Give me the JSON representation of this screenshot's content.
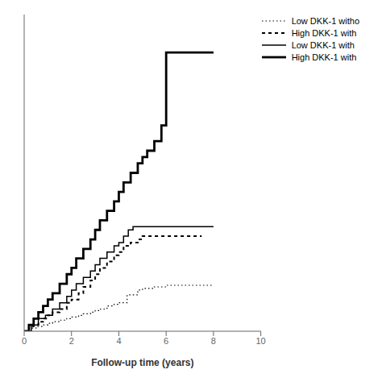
{
  "chart_data": {
    "type": "step",
    "xlabel": "Follow-up time (years)",
    "xlim": [
      0,
      10.0
    ],
    "ylim": [
      0,
      1.0
    ],
    "xticks": [
      0,
      2,
      4,
      6,
      8,
      10
    ],
    "tick_labels": "x",
    "grid": false,
    "legend": "top-right",
    "series": [
      {
        "name": "Low DKK-1 witho",
        "color": "#000000",
        "line_style": "dotted",
        "x": [
          0,
          0.3,
          0.5,
          0.8,
          1.0,
          1.2,
          1.5,
          1.8,
          2.0,
          2.3,
          2.5,
          2.8,
          3.0,
          3.2,
          3.5,
          3.8,
          4.0,
          4.2,
          4.3,
          4.35,
          4.8,
          5.0,
          5.5,
          6.0,
          6.5,
          7.0,
          7.5,
          8.0
        ],
        "values": [
          0,
          0.01,
          0.015,
          0.02,
          0.025,
          0.03,
          0.035,
          0.04,
          0.045,
          0.05,
          0.055,
          0.06,
          0.065,
          0.07,
          0.08,
          0.085,
          0.09,
          0.09,
          0.09,
          0.115,
          0.13,
          0.135,
          0.14,
          0.145,
          0.145,
          0.145,
          0.145,
          0.145
        ]
      },
      {
        "name": "High DKK-1 with",
        "color": "#000000",
        "line_style": "dashed",
        "x": [
          0,
          0.2,
          0.4,
          0.6,
          0.8,
          1.0,
          1.2,
          1.5,
          1.8,
          2.0,
          2.3,
          2.5,
          2.8,
          3.0,
          3.2,
          3.5,
          3.8,
          4.0,
          4.2,
          4.5,
          4.8,
          5.0,
          5.2,
          5.5,
          6.0,
          6.5,
          7.0,
          7.5
        ],
        "values": [
          0,
          0.015,
          0.02,
          0.03,
          0.04,
          0.05,
          0.06,
          0.07,
          0.09,
          0.1,
          0.12,
          0.14,
          0.16,
          0.18,
          0.2,
          0.22,
          0.24,
          0.25,
          0.27,
          0.28,
          0.29,
          0.3,
          0.3,
          0.3,
          0.3,
          0.3,
          0.3,
          0.3
        ]
      },
      {
        "name": "Low DKK-1 with ",
        "color": "#000000",
        "line_style": "solid",
        "x": [
          0,
          0.3,
          0.6,
          0.9,
          1.2,
          1.5,
          1.8,
          2.0,
          2.2,
          2.5,
          2.8,
          3.0,
          3.2,
          3.5,
          3.8,
          4.0,
          4.2,
          4.4,
          4.6,
          4.8,
          5.0,
          5.2,
          5.5,
          6.0,
          7.0,
          8.0
        ],
        "values": [
          0,
          0.02,
          0.04,
          0.05,
          0.07,
          0.09,
          0.11,
          0.13,
          0.15,
          0.17,
          0.19,
          0.21,
          0.23,
          0.25,
          0.27,
          0.28,
          0.3,
          0.32,
          0.33,
          0.33,
          0.33,
          0.33,
          0.33,
          0.33,
          0.33,
          0.33
        ]
      },
      {
        "name": "High DKK-1 with",
        "color": "#000000",
        "line_style": "solid",
        "x": [
          0,
          0.2,
          0.4,
          0.6,
          0.8,
          1.0,
          1.2,
          1.5,
          1.8,
          2.0,
          2.2,
          2.5,
          2.8,
          3.0,
          3.2,
          3.5,
          3.8,
          4.0,
          4.2,
          4.5,
          4.8,
          5.0,
          5.2,
          5.5,
          5.8,
          6.0,
          6.2,
          7.0,
          8.0
        ],
        "values": [
          0,
          0.02,
          0.04,
          0.06,
          0.08,
          0.1,
          0.12,
          0.15,
          0.18,
          0.2,
          0.23,
          0.26,
          0.29,
          0.32,
          0.35,
          0.38,
          0.41,
          0.44,
          0.47,
          0.5,
          0.53,
          0.55,
          0.57,
          0.6,
          0.65,
          0.88,
          0.88,
          0.88,
          0.88
        ]
      }
    ]
  }
}
